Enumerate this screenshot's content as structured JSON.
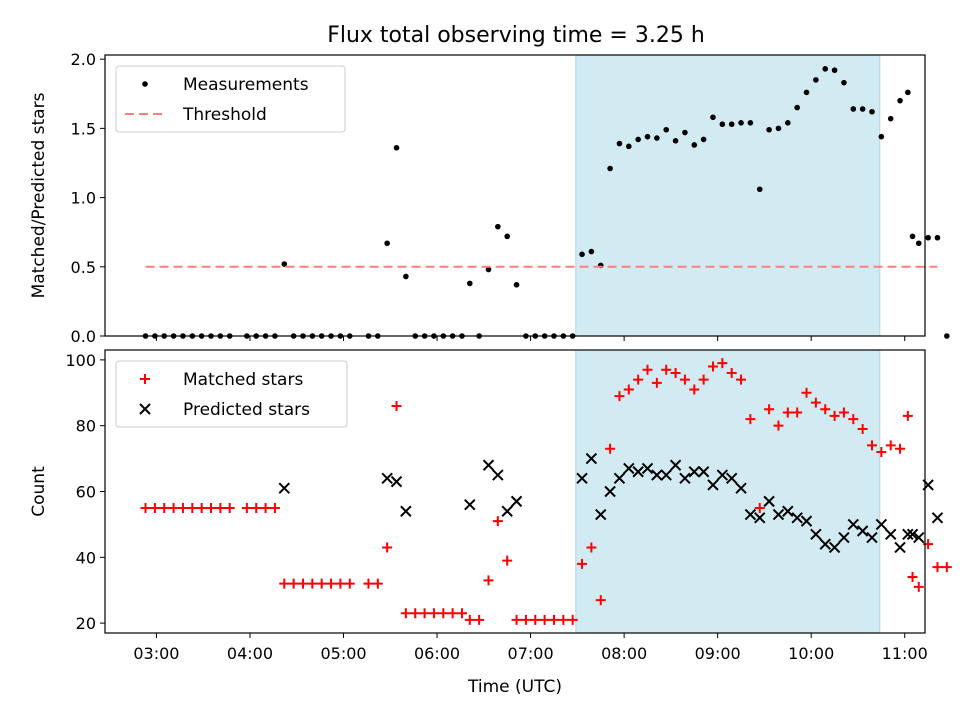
{
  "title": "Flux total observing time = 3.25 h",
  "chart_data": [
    {
      "type": "scatter",
      "panel": "top",
      "ylabel": "Matched/Predicted stars",
      "xlabel": "",
      "xlim": [
        "02:27",
        "11:13"
      ],
      "ylim": [
        0,
        2.03
      ],
      "yticks": [
        "0.0",
        "0.5",
        "1.0",
        "1.5",
        "2.0"
      ],
      "ytick_values": [
        0,
        0.5,
        1.0,
        1.5,
        2.0
      ],
      "grid": false,
      "legend": "top-left",
      "shaded_interval": {
        "start": "07:29",
        "end": "10:44",
        "color": "#add8e6"
      },
      "series": [
        {
          "name": "Measurements",
          "marker": "dot",
          "color": "#000000",
          "points": [
            [
              "02:53",
              0
            ],
            [
              "02:59",
              0
            ],
            [
              "03:05",
              0
            ],
            [
              "03:11",
              0
            ],
            [
              "03:17",
              0
            ],
            [
              "03:23",
              0
            ],
            [
              "03:29",
              0
            ],
            [
              "03:35",
              0
            ],
            [
              "03:41",
              0
            ],
            [
              "03:47",
              0
            ],
            [
              "03:58",
              0
            ],
            [
              "04:04",
              0
            ],
            [
              "04:10",
              0
            ],
            [
              "04:16",
              0
            ],
            [
              "04:22",
              0.52
            ],
            [
              "04:28",
              0
            ],
            [
              "04:34",
              0
            ],
            [
              "04:40",
              0
            ],
            [
              "04:46",
              0
            ],
            [
              "04:52",
              0
            ],
            [
              "04:58",
              0
            ],
            [
              "05:04",
              0
            ],
            [
              "05:16",
              0
            ],
            [
              "05:22",
              0
            ],
            [
              "05:28",
              0.67
            ],
            [
              "05:34",
              1.36
            ],
            [
              "05:40",
              0.43
            ],
            [
              "05:46",
              0
            ],
            [
              "05:52",
              0
            ],
            [
              "05:58",
              0
            ],
            [
              "06:04",
              0
            ],
            [
              "06:10",
              0
            ],
            [
              "06:16",
              0
            ],
            [
              "06:21",
              0.38
            ],
            [
              "06:27",
              0
            ],
            [
              "06:33",
              0.48
            ],
            [
              "06:39",
              0.79
            ],
            [
              "06:45",
              0.72
            ],
            [
              "06:51",
              0.37
            ],
            [
              "06:57",
              0
            ],
            [
              "07:03",
              0
            ],
            [
              "07:09",
              0
            ],
            [
              "07:15",
              0
            ],
            [
              "07:21",
              0
            ],
            [
              "07:27",
              0
            ],
            [
              "07:33",
              0.59
            ],
            [
              "07:39",
              0.61
            ],
            [
              "07:45",
              0.51
            ],
            [
              "07:51",
              1.21
            ],
            [
              "07:57",
              1.39
            ],
            [
              "08:03",
              1.37
            ],
            [
              "08:09",
              1.42
            ],
            [
              "08:15",
              1.44
            ],
            [
              "08:21",
              1.43
            ],
            [
              "08:27",
              1.49
            ],
            [
              "08:33",
              1.41
            ],
            [
              "08:39",
              1.47
            ],
            [
              "08:45",
              1.38
            ],
            [
              "08:51",
              1.42
            ],
            [
              "08:57",
              1.58
            ],
            [
              "09:03",
              1.53
            ],
            [
              "09:09",
              1.53
            ],
            [
              "09:15",
              1.54
            ],
            [
              "09:21",
              1.54
            ],
            [
              "09:27",
              1.06
            ],
            [
              "09:33",
              1.49
            ],
            [
              "09:39",
              1.5
            ],
            [
              "09:45",
              1.54
            ],
            [
              "09:51",
              1.65
            ],
            [
              "09:57",
              1.76
            ],
            [
              "10:03",
              1.85
            ],
            [
              "10:09",
              1.93
            ],
            [
              "10:15",
              1.92
            ],
            [
              "10:21",
              1.83
            ],
            [
              "10:27",
              1.64
            ],
            [
              "10:33",
              1.64
            ],
            [
              "10:39",
              1.62
            ],
            [
              "10:45",
              1.44
            ],
            [
              "10:51",
              1.57
            ],
            [
              "10:57",
              1.7
            ],
            [
              "11:02",
              1.76
            ],
            [
              "11:05",
              0.72
            ],
            [
              "11:09",
              0.67
            ],
            [
              "11:15",
              0.71
            ],
            [
              "11:21",
              0.71
            ],
            [
              "11:27",
              0
            ]
          ]
        },
        {
          "name": "Threshold",
          "line": "dashed",
          "color": "#ff7f7f",
          "points": [
            [
              "02:53",
              0.5
            ],
            [
              "11:21",
              0.5
            ]
          ]
        }
      ]
    },
    {
      "type": "scatter",
      "panel": "bottom",
      "ylabel": "Count",
      "xlabel": "Time (UTC)",
      "xticks": [
        "03:00",
        "04:00",
        "05:00",
        "06:00",
        "07:00",
        "08:00",
        "09:00",
        "10:00",
        "11:00"
      ],
      "ylim": [
        17,
        103
      ],
      "yticks": [
        "20",
        "40",
        "60",
        "80",
        "100"
      ],
      "ytick_values": [
        20,
        40,
        60,
        80,
        100
      ],
      "grid": false,
      "legend": "top-left",
      "series": [
        {
          "name": "Matched stars",
          "marker": "plus",
          "color": "#ff0000",
          "points": [
            [
              "02:53",
              55
            ],
            [
              "02:59",
              55
            ],
            [
              "03:05",
              55
            ],
            [
              "03:11",
              55
            ],
            [
              "03:17",
              55
            ],
            [
              "03:23",
              55
            ],
            [
              "03:29",
              55
            ],
            [
              "03:35",
              55
            ],
            [
              "03:41",
              55
            ],
            [
              "03:47",
              55
            ],
            [
              "03:58",
              55
            ],
            [
              "04:04",
              55
            ],
            [
              "04:10",
              55
            ],
            [
              "04:16",
              55
            ],
            [
              "04:22",
              32
            ],
            [
              "04:28",
              32
            ],
            [
              "04:34",
              32
            ],
            [
              "04:40",
              32
            ],
            [
              "04:46",
              32
            ],
            [
              "04:52",
              32
            ],
            [
              "04:58",
              32
            ],
            [
              "05:04",
              32
            ],
            [
              "05:16",
              32
            ],
            [
              "05:22",
              32
            ],
            [
              "05:28",
              43
            ],
            [
              "05:34",
              86
            ],
            [
              "05:40",
              23
            ],
            [
              "05:46",
              23
            ],
            [
              "05:52",
              23
            ],
            [
              "05:58",
              23
            ],
            [
              "06:04",
              23
            ],
            [
              "06:10",
              23
            ],
            [
              "06:16",
              23
            ],
            [
              "06:21",
              21
            ],
            [
              "06:27",
              21
            ],
            [
              "06:33",
              33
            ],
            [
              "06:39",
              51
            ],
            [
              "06:45",
              39
            ],
            [
              "06:51",
              21
            ],
            [
              "06:57",
              21
            ],
            [
              "07:03",
              21
            ],
            [
              "07:09",
              21
            ],
            [
              "07:15",
              21
            ],
            [
              "07:21",
              21
            ],
            [
              "07:27",
              21
            ],
            [
              "07:33",
              38
            ],
            [
              "07:39",
              43
            ],
            [
              "07:45",
              27
            ],
            [
              "07:51",
              73
            ],
            [
              "07:57",
              89
            ],
            [
              "08:03",
              91
            ],
            [
              "08:09",
              94
            ],
            [
              "08:15",
              97
            ],
            [
              "08:21",
              93
            ],
            [
              "08:27",
              97
            ],
            [
              "08:33",
              96
            ],
            [
              "08:39",
              94
            ],
            [
              "08:45",
              91
            ],
            [
              "08:51",
              94
            ],
            [
              "08:57",
              98
            ],
            [
              "09:03",
              99
            ],
            [
              "09:09",
              96
            ],
            [
              "09:15",
              94
            ],
            [
              "09:21",
              82
            ],
            [
              "09:27",
              55
            ],
            [
              "09:33",
              85
            ],
            [
              "09:39",
              80
            ],
            [
              "09:45",
              84
            ],
            [
              "09:51",
              84
            ],
            [
              "09:57",
              90
            ],
            [
              "10:03",
              87
            ],
            [
              "10:09",
              85
            ],
            [
              "10:15",
              83
            ],
            [
              "10:21",
              84
            ],
            [
              "10:27",
              82
            ],
            [
              "10:33",
              79
            ],
            [
              "10:39",
              74
            ],
            [
              "10:45",
              72
            ],
            [
              "10:51",
              74
            ],
            [
              "10:57",
              73
            ],
            [
              "11:02",
              83
            ],
            [
              "11:05",
              34
            ],
            [
              "11:09",
              31
            ],
            [
              "11:15",
              44
            ],
            [
              "11:21",
              37
            ],
            [
              "11:27",
              37
            ]
          ]
        },
        {
          "name": "Predicted stars",
          "marker": "x",
          "color": "#000000",
          "points": [
            [
              "04:22",
              61
            ],
            [
              "05:28",
              64
            ],
            [
              "05:34",
              63
            ],
            [
              "05:40",
              54
            ],
            [
              "06:21",
              56
            ],
            [
              "06:33",
              68
            ],
            [
              "06:39",
              65
            ],
            [
              "06:45",
              54
            ],
            [
              "06:51",
              57
            ],
            [
              "07:33",
              64
            ],
            [
              "07:39",
              70
            ],
            [
              "07:45",
              53
            ],
            [
              "07:51",
              60
            ],
            [
              "07:57",
              64
            ],
            [
              "08:03",
              67
            ],
            [
              "08:09",
              66
            ],
            [
              "08:15",
              67
            ],
            [
              "08:21",
              65
            ],
            [
              "08:27",
              65
            ],
            [
              "08:33",
              68
            ],
            [
              "08:39",
              64
            ],
            [
              "08:45",
              66
            ],
            [
              "08:51",
              66
            ],
            [
              "08:57",
              62
            ],
            [
              "09:03",
              65
            ],
            [
              "09:09",
              64
            ],
            [
              "09:15",
              61
            ],
            [
              "09:21",
              53
            ],
            [
              "09:27",
              52
            ],
            [
              "09:33",
              57
            ],
            [
              "09:39",
              53
            ],
            [
              "09:45",
              54
            ],
            [
              "09:51",
              52
            ],
            [
              "09:57",
              51
            ],
            [
              "10:03",
              47
            ],
            [
              "10:09",
              44
            ],
            [
              "10:15",
              43
            ],
            [
              "10:21",
              46
            ],
            [
              "10:27",
              50
            ],
            [
              "10:33",
              48
            ],
            [
              "10:39",
              46
            ],
            [
              "10:45",
              50
            ],
            [
              "10:51",
              47
            ],
            [
              "10:57",
              43
            ],
            [
              "11:02",
              47
            ],
            [
              "11:05",
              47
            ],
            [
              "11:09",
              46
            ],
            [
              "11:15",
              62
            ],
            [
              "11:21",
              52
            ]
          ]
        }
      ]
    }
  ]
}
